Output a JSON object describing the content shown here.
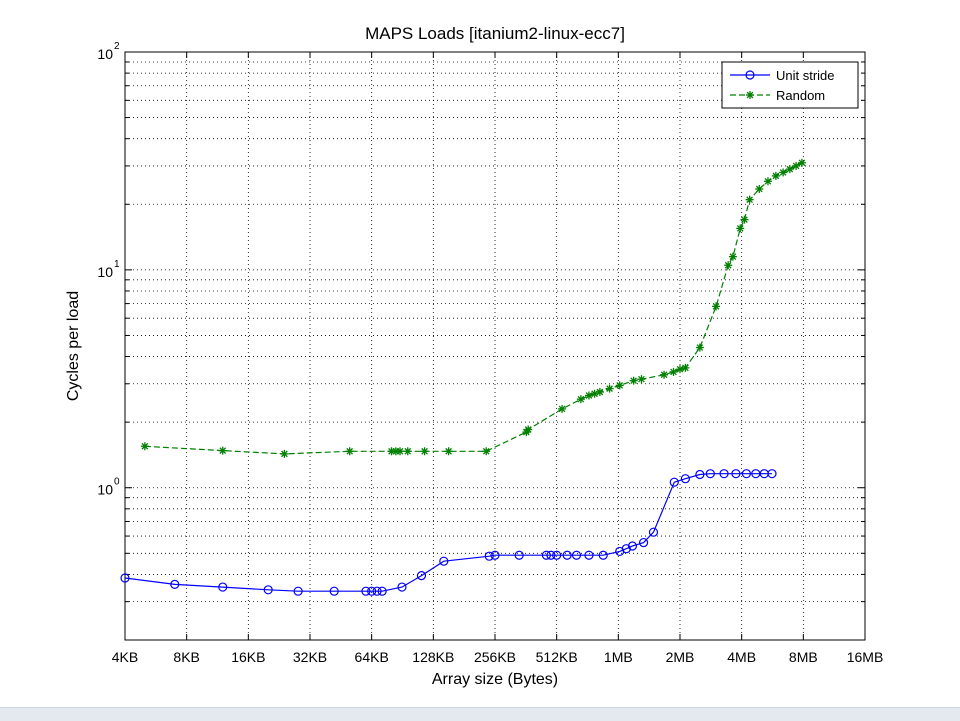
{
  "chart_data": {
    "type": "line",
    "title": "MAPS Loads [itanium2-linux-ecc7]",
    "xlabel": "Array size (Bytes)",
    "ylabel": "Cycles per load",
    "x_scale": "log2",
    "y_scale": "log10",
    "xlim_bytes": [
      4096,
      16777216
    ],
    "ylim": [
      0.2,
      100
    ],
    "x_ticks": [
      {
        "bytes": 4096,
        "label": "4KB"
      },
      {
        "bytes": 8192,
        "label": "8KB"
      },
      {
        "bytes": 16384,
        "label": "16KB"
      },
      {
        "bytes": 32768,
        "label": "32KB"
      },
      {
        "bytes": 65536,
        "label": "64KB"
      },
      {
        "bytes": 131072,
        "label": "128KB"
      },
      {
        "bytes": 262144,
        "label": "256KB"
      },
      {
        "bytes": 524288,
        "label": "512KB"
      },
      {
        "bytes": 1048576,
        "label": "1MB"
      },
      {
        "bytes": 2097152,
        "label": "2MB"
      },
      {
        "bytes": 4194304,
        "label": "4MB"
      },
      {
        "bytes": 8388608,
        "label": "8MB"
      },
      {
        "bytes": 16777216,
        "label": "16MB"
      }
    ],
    "y_ticks": [
      {
        "value": 1,
        "base": "10",
        "exp": "0"
      },
      {
        "value": 10,
        "base": "10",
        "exp": "1"
      },
      {
        "value": 100,
        "base": "10",
        "exp": "2"
      }
    ],
    "grid": true,
    "legend_position": "top-right",
    "series": [
      {
        "name": "Unit stride",
        "color": "#0000ff",
        "line_style": "solid",
        "marker": "circle",
        "points": [
          [
            4096,
            0.385
          ],
          [
            7168,
            0.36
          ],
          [
            12288,
            0.35
          ],
          [
            20480,
            0.34
          ],
          [
            28672,
            0.335
          ],
          [
            43008,
            0.335
          ],
          [
            61440,
            0.335
          ],
          [
            65536,
            0.335
          ],
          [
            69632,
            0.335
          ],
          [
            73728,
            0.335
          ],
          [
            92160,
            0.35
          ],
          [
            114688,
            0.395
          ],
          [
            147456,
            0.46
          ],
          [
            245760,
            0.485
          ],
          [
            262144,
            0.49
          ],
          [
            344064,
            0.49
          ],
          [
            466944,
            0.49
          ],
          [
            491520,
            0.49
          ],
          [
            524288,
            0.49
          ],
          [
            589824,
            0.49
          ],
          [
            655360,
            0.49
          ],
          [
            753664,
            0.49
          ],
          [
            884736,
            0.49
          ],
          [
            1064960,
            0.51
          ],
          [
            1146880,
            0.525
          ],
          [
            1228800,
            0.54
          ],
          [
            1392640,
            0.56
          ],
          [
            1556480,
            0.625
          ],
          [
            1966080,
            1.06
          ],
          [
            2228224,
            1.1
          ],
          [
            2621440,
            1.15
          ],
          [
            2949120,
            1.16
          ],
          [
            3440640,
            1.16
          ],
          [
            3932160,
            1.16
          ],
          [
            4423680,
            1.16
          ],
          [
            4915200,
            1.16
          ],
          [
            5406720,
            1.16
          ],
          [
            5898240,
            1.16
          ]
        ]
      },
      {
        "name": "Random",
        "color": "#008000",
        "line_style": "dashed",
        "marker": "asterisk",
        "points": [
          [
            5120,
            1.55
          ],
          [
            12288,
            1.48
          ],
          [
            24576,
            1.43
          ],
          [
            51200,
            1.47
          ],
          [
            81920,
            1.47
          ],
          [
            86016,
            1.47
          ],
          [
            90112,
            1.47
          ],
          [
            98304,
            1.47
          ],
          [
            118784,
            1.47
          ],
          [
            155648,
            1.47
          ],
          [
            237568,
            1.47
          ],
          [
            372736,
            1.8
          ],
          [
            380928,
            1.85
          ],
          [
            557056,
            2.3
          ],
          [
            688128,
            2.55
          ],
          [
            753664,
            2.65
          ],
          [
            802816,
            2.7
          ],
          [
            851968,
            2.75
          ],
          [
            950272,
            2.85
          ],
          [
            1064960,
            2.95
          ],
          [
            1245184,
            3.1
          ],
          [
            1359872,
            3.15
          ],
          [
            1753088,
            3.3
          ],
          [
            1949696,
            3.4
          ],
          [
            2097152,
            3.5
          ],
          [
            2228224,
            3.55
          ],
          [
            2621440,
            4.4
          ],
          [
            3145728,
            6.8
          ],
          [
            3604480,
            10.5
          ],
          [
            3801088,
            11.5
          ],
          [
            4128768,
            15.5
          ],
          [
            4325376,
            17
          ],
          [
            4587520,
            21
          ],
          [
            5111808,
            23.5
          ],
          [
            5636096,
            25.5
          ],
          [
            6160384,
            27
          ],
          [
            6684672,
            28
          ],
          [
            7208960,
            29
          ],
          [
            7733248,
            30
          ],
          [
            8257536,
            31
          ]
        ]
      }
    ]
  }
}
